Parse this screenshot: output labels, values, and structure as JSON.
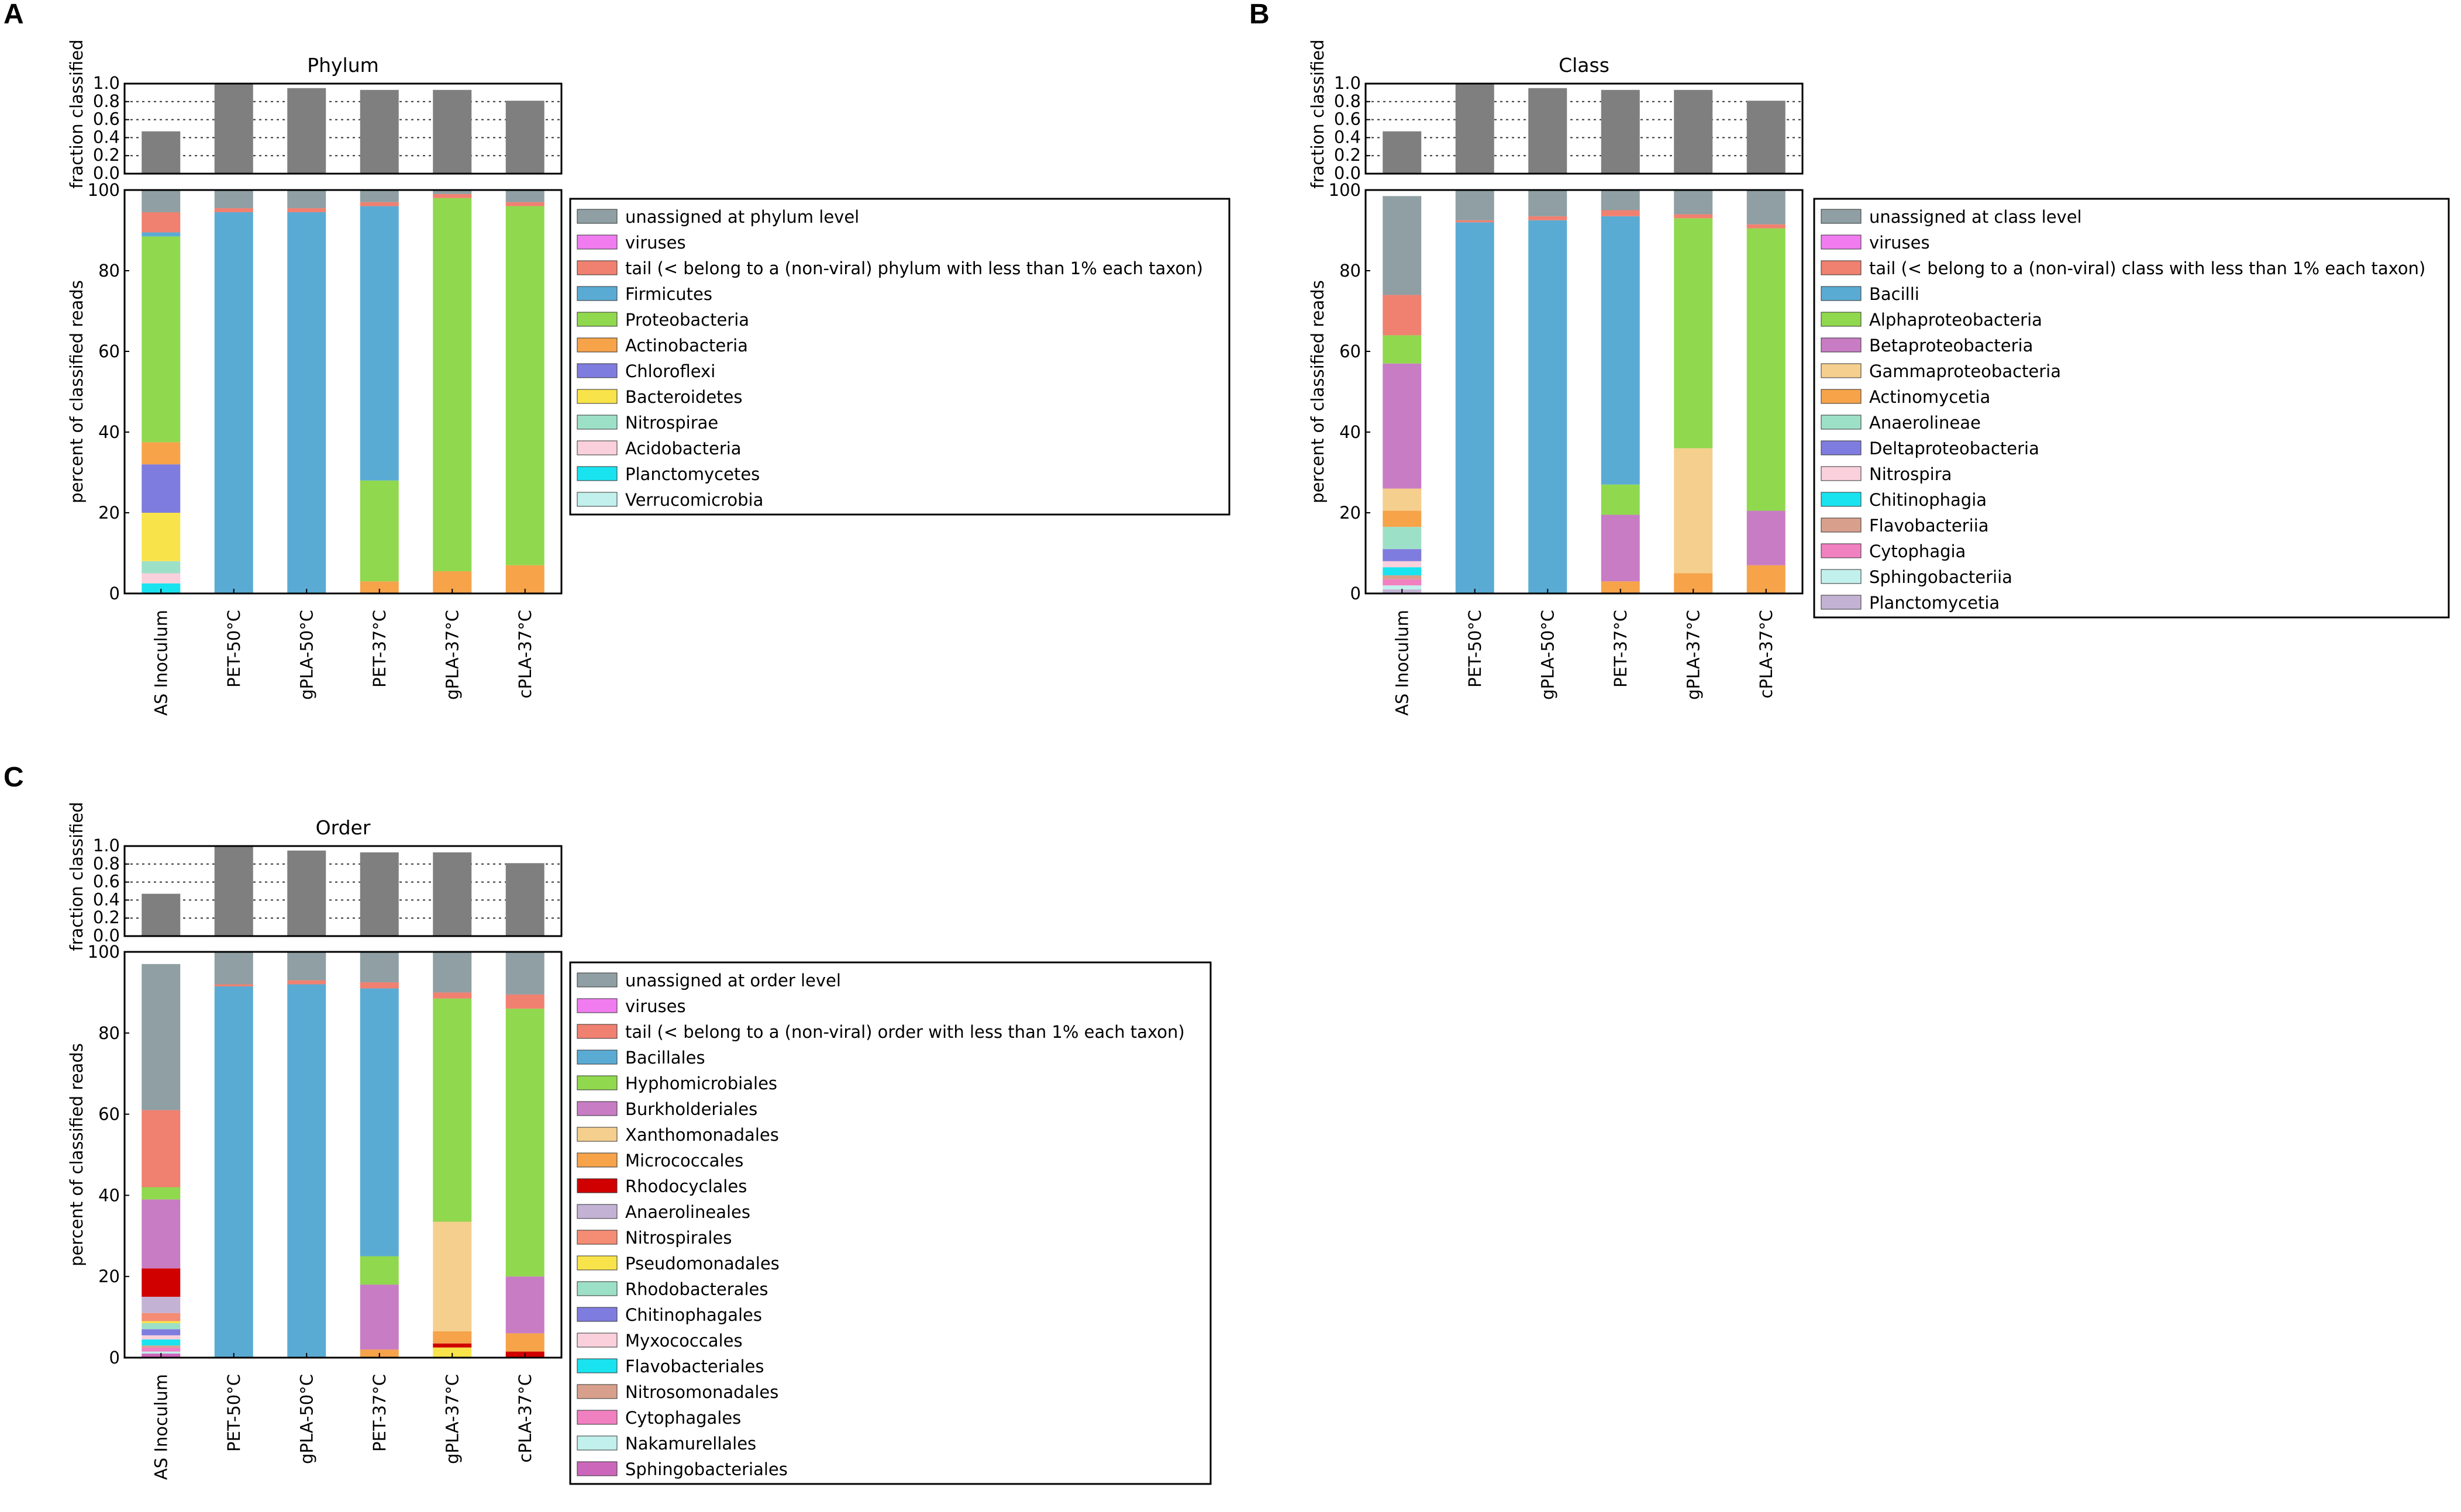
{
  "colors": {
    "unassigned": "#8f9fa3",
    "viruses": "#f07cf0",
    "tail": "#f08070",
    "firmicutes": "#5aabd4",
    "green": "#90d84e",
    "purple": "#c87cc4",
    "tan": "#f5cf8e",
    "orange": "#f6a34a",
    "red": "#d10000",
    "lavender": "#c4b2d4",
    "salmon": "#f58c74",
    "yellow": "#f9e34a",
    "mint": "#9de0c8",
    "blue": "#7f7cdf",
    "pink_light": "#f9d0dc",
    "cyan": "#19e3ef",
    "rosybrown": "#d8a08c",
    "hotpink": "#f080c0",
    "paleteal": "#c2f0ec",
    "orchid": "#cc66bb",
    "bar_gray": "#7f7f7f"
  },
  "chart_data": [
    {
      "type": "bar",
      "panel": "A",
      "title": "Phylum",
      "top_ylabel": "fraction classified",
      "top_ylim": [
        0,
        1.0
      ],
      "top_ticks": [
        "0.0",
        "0.2",
        "0.4",
        "0.6",
        "0.8",
        "1.0"
      ],
      "fraction_classified": [
        0.47,
        0.99,
        0.95,
        0.93,
        0.93,
        0.81
      ],
      "ylabel": "percent of classified reads",
      "ylim": [
        0,
        100
      ],
      "yticks": [
        "0",
        "20",
        "40",
        "60",
        "80",
        "100"
      ],
      "categories": [
        "AS Inoculum",
        "PET-50°C",
        "gPLA-50°C",
        "PET-37°C",
        "gPLA-37°C",
        "cPLA-37°C"
      ],
      "series": [
        {
          "name": "Verrucomicrobia",
          "color": "paleteal",
          "values": [
            0,
            0,
            0,
            0,
            0,
            0
          ]
        },
        {
          "name": "Planctomycetes",
          "color": "cyan",
          "values": [
            2.5,
            0,
            0,
            0,
            0,
            0
          ]
        },
        {
          "name": "Acidobacteria",
          "color": "pink_light",
          "values": [
            2.5,
            0,
            0,
            0,
            0,
            0
          ]
        },
        {
          "name": "Nitrospirae",
          "color": "mint",
          "values": [
            3,
            0,
            0,
            0,
            0,
            0
          ]
        },
        {
          "name": "Bacteroidetes",
          "color": "yellow",
          "values": [
            12,
            0,
            0,
            0,
            0,
            0
          ]
        },
        {
          "name": "Chloroflexi",
          "color": "blue",
          "values": [
            12,
            0,
            0,
            0,
            0,
            0
          ]
        },
        {
          "name": "Actinobacteria",
          "color": "orange",
          "values": [
            5.5,
            0,
            0,
            3,
            5.5,
            7
          ]
        },
        {
          "name": "Proteobacteria",
          "color": "green",
          "values": [
            51,
            0,
            0,
            25,
            92.5,
            89
          ]
        },
        {
          "name": "Firmicutes",
          "color": "firmicutes",
          "values": [
            1,
            94.5,
            94.5,
            68,
            0,
            0
          ]
        },
        {
          "name": "tail (< belong to a (non-viral) phylum with less than 1% each taxon)",
          "color": "tail",
          "values": [
            5,
            1,
            1,
            1,
            1,
            1
          ]
        },
        {
          "name": "viruses",
          "color": "viruses",
          "values": [
            0,
            0,
            0,
            0,
            0,
            0
          ]
        },
        {
          "name": "unassigned at phylum level",
          "color": "unassigned",
          "values": [
            5.5,
            4.5,
            4.5,
            3,
            1,
            3
          ]
        }
      ]
    },
    {
      "type": "bar",
      "panel": "B",
      "title": "Class",
      "top_ylabel": "fraction classified",
      "top_ylim": [
        0,
        1.0
      ],
      "top_ticks": [
        "0.0",
        "0.2",
        "0.4",
        "0.6",
        "0.8",
        "1.0"
      ],
      "fraction_classified": [
        0.47,
        0.99,
        0.95,
        0.93,
        0.93,
        0.81
      ],
      "ylabel": "percent of classified reads",
      "ylim": [
        0,
        100
      ],
      "yticks": [
        "0",
        "20",
        "40",
        "60",
        "80",
        "100"
      ],
      "categories": [
        "AS Inoculum",
        "PET-50°C",
        "gPLA-50°C",
        "PET-37°C",
        "gPLA-37°C",
        "cPLA-37°C"
      ],
      "series": [
        {
          "name": "Planctomycetia",
          "color": "lavender",
          "values": [
            1,
            0,
            0,
            0,
            0,
            0
          ]
        },
        {
          "name": "Sphingobacteriia",
          "color": "paleteal",
          "values": [
            1,
            0,
            0,
            0,
            0,
            0
          ]
        },
        {
          "name": "Cytophagia",
          "color": "hotpink",
          "values": [
            1.5,
            0,
            0,
            0,
            0,
            0
          ]
        },
        {
          "name": "Flavobacteriia",
          "color": "rosybrown",
          "values": [
            1,
            0,
            0,
            0,
            0,
            0
          ]
        },
        {
          "name": "Chitinophagia",
          "color": "cyan",
          "values": [
            2,
            0,
            0,
            0,
            0,
            0
          ]
        },
        {
          "name": "Nitrospira",
          "color": "pink_light",
          "values": [
            1.5,
            0,
            0,
            0,
            0,
            0
          ]
        },
        {
          "name": "Deltaproteobacteria",
          "color": "blue",
          "values": [
            3,
            0,
            0,
            0,
            0,
            0
          ]
        },
        {
          "name": "Anaerolineae",
          "color": "mint",
          "values": [
            5.5,
            0,
            0,
            0,
            0,
            0
          ]
        },
        {
          "name": "Actinomycetia",
          "color": "orange",
          "values": [
            4,
            0,
            0,
            3,
            5,
            7
          ]
        },
        {
          "name": "Gammaproteobacteria",
          "color": "tan",
          "values": [
            5.5,
            0,
            0,
            0,
            31,
            0
          ]
        },
        {
          "name": "Betaproteobacteria",
          "color": "purple",
          "values": [
            31,
            0,
            0,
            16.5,
            0,
            13.5
          ]
        },
        {
          "name": "Alphaproteobacteria",
          "color": "green",
          "values": [
            7,
            0,
            0,
            7.5,
            57,
            70
          ]
        },
        {
          "name": "Bacilli",
          "color": "firmicutes",
          "values": [
            0,
            92,
            92.5,
            66.5,
            0,
            0
          ]
        },
        {
          "name": "tail (< belong to a (non-viral) class with less than 1% each taxon)",
          "color": "tail",
          "values": [
            10,
            0.5,
            1,
            1.5,
            1,
            1
          ]
        },
        {
          "name": "viruses",
          "color": "viruses",
          "values": [
            0,
            0,
            0,
            0,
            0,
            0
          ]
        },
        {
          "name": "unassigned at class level",
          "color": "unassigned",
          "values": [
            24.5,
            7.5,
            6.5,
            5,
            6,
            8.5
          ]
        }
      ]
    },
    {
      "type": "bar",
      "panel": "C",
      "title": "Order",
      "top_ylabel": "fraction classified",
      "top_ylim": [
        0,
        1.0
      ],
      "top_ticks": [
        "0.0",
        "0.2",
        "0.4",
        "0.6",
        "0.8",
        "1.0"
      ],
      "fraction_classified": [
        0.47,
        0.99,
        0.95,
        0.93,
        0.93,
        0.81
      ],
      "ylabel": "percent of classified reads",
      "ylim": [
        0,
        100
      ],
      "yticks": [
        "0",
        "20",
        "40",
        "60",
        "80",
        "100"
      ],
      "categories": [
        "AS Inoculum",
        "PET-50°C",
        "gPLA-50°C",
        "PET-37°C",
        "gPLA-37°C",
        "cPLA-37°C"
      ],
      "series": [
        {
          "name": "Sphingobacteriales",
          "color": "orchid",
          "values": [
            1,
            0,
            0,
            0,
            0,
            0
          ]
        },
        {
          "name": "Nakamurellales",
          "color": "paleteal",
          "values": [
            0.5,
            0,
            0,
            0,
            0,
            0
          ]
        },
        {
          "name": "Cytophagales",
          "color": "hotpink",
          "values": [
            1,
            0,
            0,
            0,
            0,
            0
          ]
        },
        {
          "name": "Nitrosomonadales",
          "color": "rosybrown",
          "values": [
            0.5,
            0,
            0,
            0,
            0,
            0
          ]
        },
        {
          "name": "Flavobacteriales",
          "color": "cyan",
          "values": [
            1.5,
            0,
            0,
            0,
            0,
            0
          ]
        },
        {
          "name": "Myxococcales",
          "color": "pink_light",
          "values": [
            1,
            0,
            0,
            0,
            0,
            0
          ]
        },
        {
          "name": "Chitinophagales",
          "color": "blue",
          "values": [
            1.5,
            0,
            0,
            0,
            0,
            0
          ]
        },
        {
          "name": "Rhodobacterales",
          "color": "mint",
          "values": [
            1.5,
            0,
            0,
            0,
            0,
            0
          ]
        },
        {
          "name": "Pseudomonadales",
          "color": "yellow",
          "values": [
            0.5,
            0,
            0,
            0,
            2.5,
            0
          ]
        },
        {
          "name": "Nitrospirales",
          "color": "salmon",
          "values": [
            2,
            0,
            0,
            0,
            0,
            0
          ]
        },
        {
          "name": "Anaerolineales",
          "color": "lavender",
          "values": [
            4,
            0,
            0,
            0,
            0,
            0
          ]
        },
        {
          "name": "Rhodocyclales",
          "color": "red",
          "values": [
            7,
            0,
            0,
            0,
            1,
            1.5
          ]
        },
        {
          "name": "Micrococcales",
          "color": "orange",
          "values": [
            0,
            0,
            0,
            2,
            3,
            4.5
          ]
        },
        {
          "name": "Xanthomonadales",
          "color": "tan",
          "values": [
            0,
            0,
            0,
            0,
            27,
            0
          ]
        },
        {
          "name": "Burkholderiales",
          "color": "purple",
          "values": [
            17,
            0,
            0,
            16,
            0,
            14
          ]
        },
        {
          "name": "Hyphomicrobiales",
          "color": "green",
          "values": [
            3,
            0,
            0,
            7,
            55,
            66
          ]
        },
        {
          "name": "Bacillales",
          "color": "firmicutes",
          "values": [
            0,
            91.5,
            92,
            66,
            0,
            0
          ]
        },
        {
          "name": "tail (< belong to a (non-viral) order with less than 1% each taxon)",
          "color": "tail",
          "values": [
            19,
            0.5,
            1,
            1.5,
            1.5,
            3.5
          ]
        },
        {
          "name": "viruses",
          "color": "viruses",
          "values": [
            0,
            0,
            0,
            0,
            0,
            0
          ]
        },
        {
          "name": "unassigned at order level",
          "color": "unassigned",
          "values": [
            36,
            8,
            7,
            7.5,
            10,
            10.5
          ]
        }
      ]
    }
  ]
}
